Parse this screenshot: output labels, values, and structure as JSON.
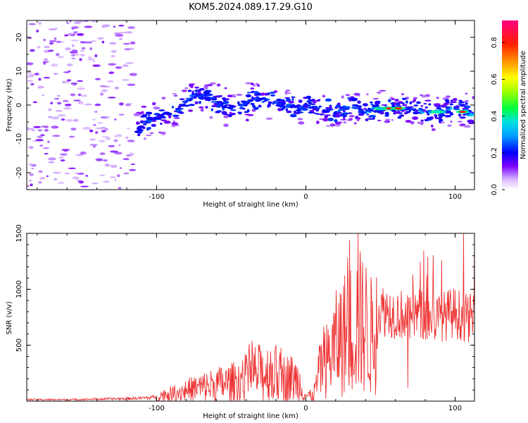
{
  "title": "KOM5.2024.089.17.29.G10",
  "chart_data": [
    {
      "type": "heatmap",
      "xlabel": "Height of straight line (km)",
      "ylabel": "Frequency (Hz)",
      "xlim": [
        -187,
        113
      ],
      "ylim": [
        -25,
        25
      ],
      "xticks": [
        -100,
        0,
        100
      ],
      "yticks": [
        -20,
        -10,
        0,
        10,
        20
      ],
      "grid": false,
      "ridge": {
        "x": [
          -112,
          -105,
          -95,
          -85,
          -75,
          -65,
          -55,
          -45,
          -35,
          -25,
          -15,
          -5,
          0,
          10,
          20,
          30,
          40,
          50,
          60,
          70,
          80,
          90,
          100,
          113
        ],
        "y": [
          -6,
          -5,
          -3,
          -1,
          3,
          2,
          0,
          -1,
          2,
          1,
          0,
          -1,
          0,
          -1,
          -2,
          0,
          -2,
          -1,
          -1,
          -1,
          -2,
          -2,
          -1,
          -3
        ]
      },
      "peaks": [
        {
          "x": 55,
          "y": -1,
          "value": 0.9
        },
        {
          "x": 62,
          "y": -1,
          "value": 0.85
        },
        {
          "x": 105,
          "y": -2,
          "value": 0.9
        },
        {
          "x": 88,
          "y": -2,
          "value": 0.4
        },
        {
          "x": 50,
          "y": -1,
          "value": 0.35
        }
      ],
      "colorbar": {
        "label": "Normalized spectral amplitude",
        "ticks": [
          0.0,
          0.2,
          0.4,
          0.6,
          0.8
        ],
        "range": [
          0.0,
          0.92
        ]
      }
    },
    {
      "type": "line",
      "xlabel": "Height of straight line (km)",
      "ylabel": "SNR (v/v)",
      "xlim": [
        -187,
        113
      ],
      "ylim": [
        0,
        1500
      ],
      "xticks": [
        -100,
        0,
        100
      ],
      "yticks": [
        500,
        1000,
        1500
      ],
      "series": [
        {
          "color": "#ee3333",
          "x": [
            -187,
            -160,
            -140,
            -120,
            -110,
            -100,
            -95,
            -90,
            -80,
            -70,
            -60,
            -50,
            -40,
            -35,
            -30,
            -25,
            -20,
            -15,
            -10,
            -5,
            0,
            5,
            10,
            15,
            20,
            25,
            30,
            35,
            40,
            45,
            50,
            55,
            60,
            65,
            70,
            75,
            80,
            85,
            90,
            95,
            100,
            105,
            110,
            113
          ],
          "y": [
            15,
            15,
            20,
            25,
            30,
            40,
            70,
            80,
            120,
            150,
            180,
            200,
            250,
            300,
            300,
            310,
            280,
            250,
            250,
            220,
            60,
            60,
            350,
            450,
            600,
            700,
            780,
            850,
            800,
            650,
            870,
            850,
            830,
            820,
            760,
            840,
            800,
            780,
            790,
            820,
            840,
            800,
            780,
            830
          ]
        }
      ],
      "annotations": [
        {
          "x": 35,
          "y": 1500,
          "text": ""
        },
        {
          "x": 68,
          "y": 120,
          "text": ""
        }
      ]
    }
  ],
  "icons": [
    "colorbar-gradient"
  ],
  "colors": {
    "snr_line": "#ee3333",
    "axis": "#000000"
  }
}
